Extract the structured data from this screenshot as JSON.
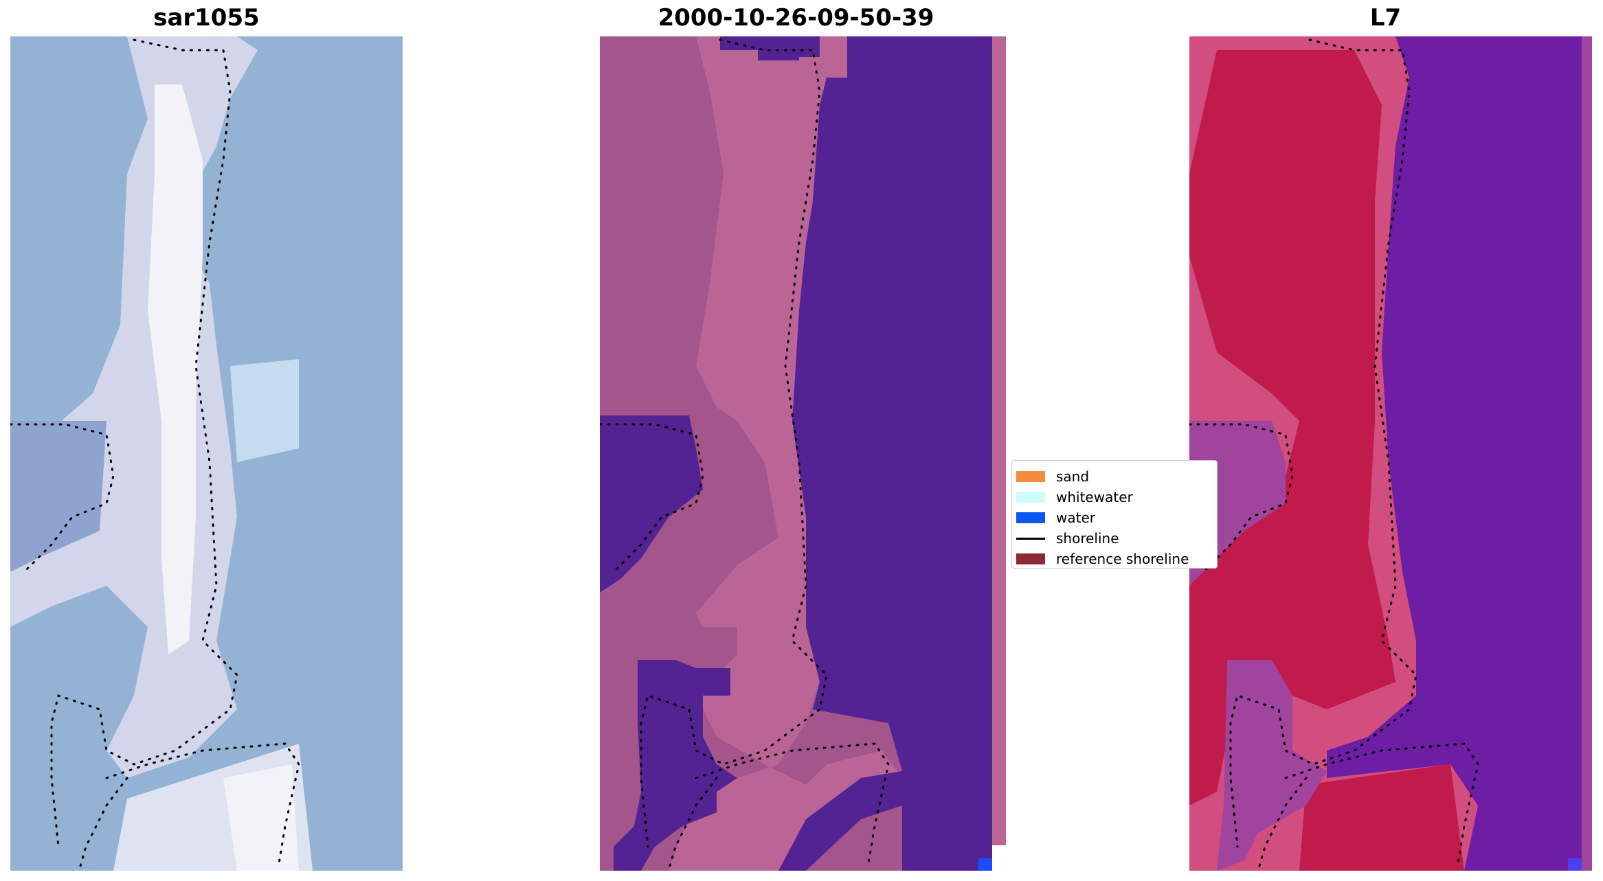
{
  "panels": [
    {
      "title": "sar1055",
      "kind": "rgb-image"
    },
    {
      "title": "2000-10-26-09-50-39",
      "kind": "classified-image"
    },
    {
      "title": "L7",
      "kind": "index-image"
    }
  ],
  "legend": {
    "items": [
      {
        "label": "sand",
        "color": "#f68b3c",
        "kind": "patch"
      },
      {
        "label": "whitewater",
        "color": "#cffcfb",
        "kind": "patch"
      },
      {
        "label": "water",
        "color": "#0c57f0",
        "kind": "patch"
      },
      {
        "label": "shoreline",
        "color": "#000000",
        "kind": "line"
      },
      {
        "label": "reference shoreline",
        "color": "#8d2a33",
        "kind": "patch"
      }
    ]
  },
  "colors": {
    "rgb_bg": "#93b2d4",
    "rgb_bright": "#f4f2f7",
    "rgb_mid": "#c9cfe6",
    "class_land": "#a4558c",
    "class_land_light": "#bb6597",
    "class_water": "#532293",
    "index_sand": "#c11a4c",
    "index_land": "#d24e7f",
    "index_water": "#6d1ea4",
    "index_mid": "#a0449d",
    "water_marker": "#1a4dff",
    "shoreline": "#000000"
  }
}
